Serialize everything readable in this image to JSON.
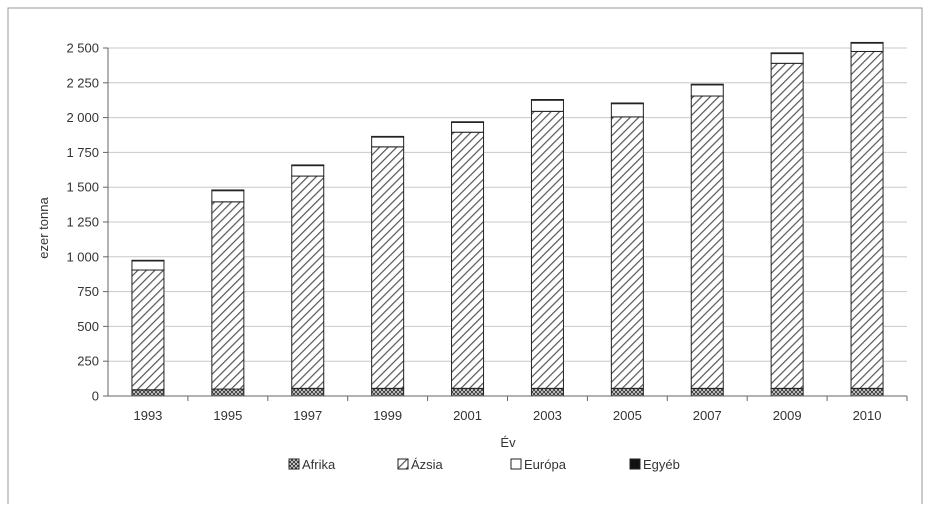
{
  "chart_data": {
    "type": "bar",
    "stacked": true,
    "title": "",
    "xlabel": "Év",
    "ylabel": "ezer tonna",
    "ylim": [
      0,
      2500
    ],
    "yticks": [
      0,
      250,
      500,
      750,
      1000,
      1250,
      1500,
      1750,
      2000,
      2250,
      2500
    ],
    "ytick_labels": [
      "0",
      "250",
      "500",
      "750",
      "1 000",
      "1 250",
      "1 500",
      "1 750",
      "2 000",
      "2 250",
      "2 500"
    ],
    "grid": "horizontal",
    "legend_position": "bottom",
    "categories": [
      "1993",
      "1995",
      "1997",
      "1999",
      "2001",
      "2003",
      "2005",
      "2007",
      "2009",
      "2010"
    ],
    "series": [
      {
        "name": "Afrika",
        "pattern": "crosshatch",
        "color": "#555555",
        "values": [
          45,
          50,
          55,
          55,
          55,
          55,
          55,
          55,
          55,
          55
        ]
      },
      {
        "name": "Ázsia",
        "pattern": "diagonal",
        "color": "#555555",
        "values": [
          860,
          1345,
          1525,
          1735,
          1840,
          1990,
          1950,
          2100,
          2335,
          2420
        ]
      },
      {
        "name": "Európa",
        "pattern": "none",
        "color": "#ffffff",
        "values": [
          65,
          80,
          75,
          70,
          70,
          80,
          95,
          80,
          70,
          60
        ]
      },
      {
        "name": "Egyéb",
        "pattern": "solid",
        "color": "#111111",
        "values": [
          5,
          5,
          5,
          5,
          5,
          5,
          5,
          5,
          5,
          5
        ]
      }
    ]
  }
}
